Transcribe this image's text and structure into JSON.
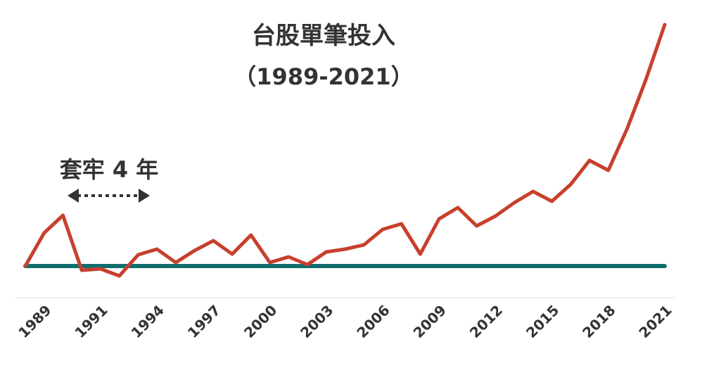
{
  "chart_data": {
    "type": "line",
    "title": "台股單筆投入",
    "subtitle": "（1989-2021）",
    "annotation": "套牢 4 年",
    "categories": [
      "1989",
      null,
      null,
      "1991",
      null,
      null,
      "1994",
      null,
      null,
      "1997",
      null,
      null,
      "2000",
      null,
      null,
      "2003",
      null,
      null,
      "2006",
      null,
      null,
      "2009",
      null,
      null,
      "2012",
      null,
      null,
      "2015",
      null,
      null,
      "2018",
      null,
      null,
      "2021",
      null
    ],
    "series": [
      {
        "color": "#c7402d",
        "values": [
          0,
          47,
          72,
          -6,
          -4,
          -14,
          16,
          24,
          5,
          22,
          36,
          17,
          44,
          5,
          13,
          2,
          20,
          24,
          30,
          52,
          60,
          17,
          67,
          83,
          57,
          71,
          90,
          106,
          92,
          116,
          150,
          136,
          195,
          265,
          343
        ]
      }
    ],
    "baseline": 0,
    "baseline_color": "#106e6e",
    "ylim": [
      -45,
      343
    ]
  }
}
